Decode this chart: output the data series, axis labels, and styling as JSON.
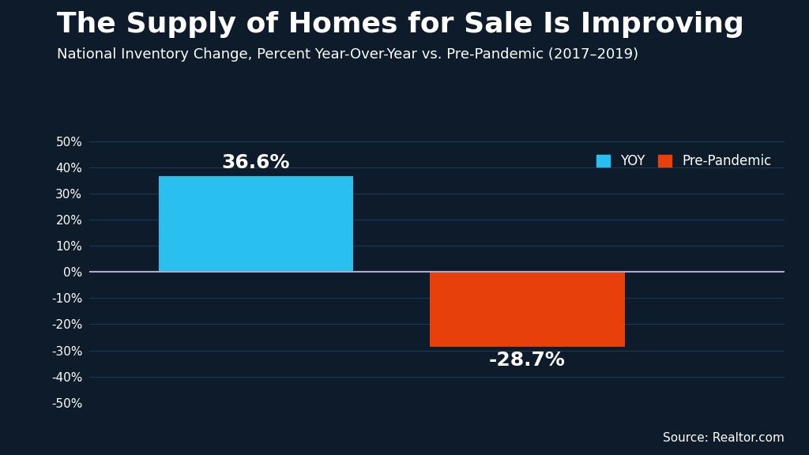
{
  "title": "The Supply of Homes for Sale Is Improving",
  "subtitle": "National Inventory Change, Percent Year-Over-Year vs. Pre-Pandemic (2017–2019)",
  "categories": [
    "YOY",
    "Pre-Pandemic"
  ],
  "values": [
    36.6,
    -28.7
  ],
  "bar_colors": [
    "#29BFEF",
    "#E8400A"
  ],
  "bar_labels": [
    "36.6%",
    "-28.7%"
  ],
  "legend_labels": [
    "YOY",
    "Pre-Pandemic"
  ],
  "ylim": [
    -50,
    50
  ],
  "yticks": [
    -50,
    -40,
    -30,
    -20,
    -10,
    0,
    10,
    20,
    30,
    40,
    50
  ],
  "background_color": "#0D1B2A",
  "text_color": "#FFFFFF",
  "grid_color": "#1E3A52",
  "source_text": "Source: Realtor.com",
  "title_fontsize": 26,
  "subtitle_fontsize": 13,
  "label_fontsize": 18,
  "tick_fontsize": 11,
  "source_fontsize": 11,
  "bar_width": 0.28,
  "footer_color": "#1A6B9A",
  "zero_line_color": "#AAAACC"
}
